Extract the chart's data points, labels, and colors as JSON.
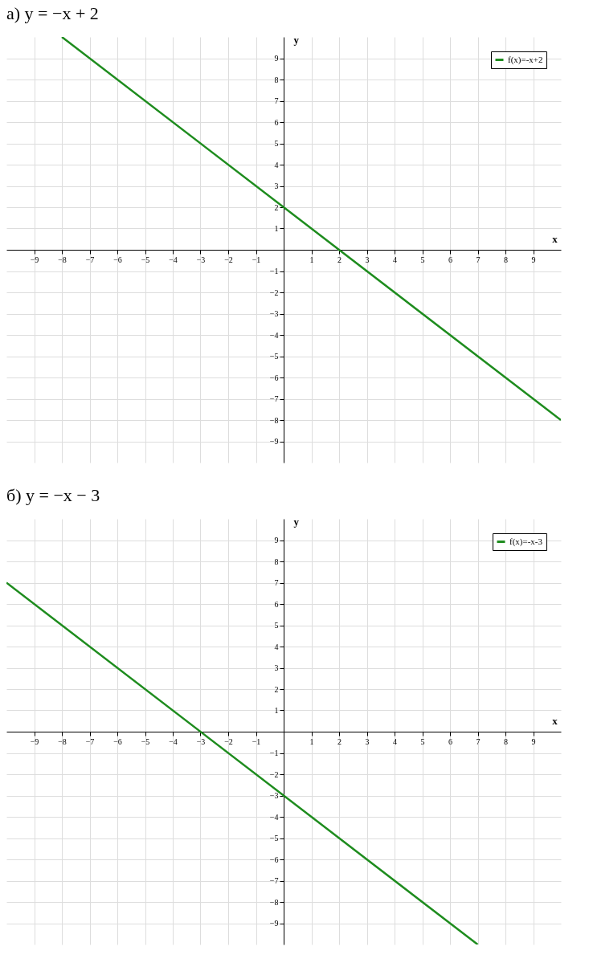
{
  "chart_data": [
    {
      "type": "line",
      "title": "а) y = −x + 2",
      "xlabel": "x",
      "ylabel": "y",
      "xlim": [
        -10,
        10
      ],
      "ylim": [
        -10,
        10
      ],
      "xticks": [
        -9,
        -8,
        -7,
        -6,
        -5,
        -4,
        -3,
        -2,
        -1,
        1,
        2,
        3,
        4,
        5,
        6,
        7,
        8,
        9
      ],
      "yticks": [
        -9,
        -8,
        -7,
        -6,
        -5,
        -4,
        -3,
        -2,
        -1,
        1,
        2,
        3,
        4,
        5,
        6,
        7,
        8,
        9
      ],
      "grid": true,
      "legend": "top right",
      "series": [
        {
          "name": "f(x)=-x+2",
          "color": "#1e8c1e",
          "x": [
            -8,
            10
          ],
          "values": [
            10,
            -8
          ]
        }
      ]
    },
    {
      "type": "line",
      "title": "б) y = −x − 3",
      "xlabel": "x",
      "ylabel": "y",
      "xlim": [
        -10,
        10
      ],
      "ylim": [
        -10,
        10
      ],
      "xticks": [
        -9,
        -8,
        -7,
        -6,
        -5,
        -4,
        -3,
        -2,
        -1,
        1,
        2,
        3,
        4,
        5,
        6,
        7,
        8,
        9
      ],
      "yticks": [
        -9,
        -8,
        -7,
        -6,
        -5,
        -4,
        -3,
        -2,
        -1,
        1,
        2,
        3,
        4,
        5,
        6,
        7,
        8,
        9
      ],
      "grid": true,
      "legend": "top right",
      "series": [
        {
          "name": "f(x)=-x-3",
          "color": "#1e8c1e",
          "x": [
            -10,
            7
          ],
          "values": [
            7,
            -10
          ]
        }
      ]
    }
  ]
}
